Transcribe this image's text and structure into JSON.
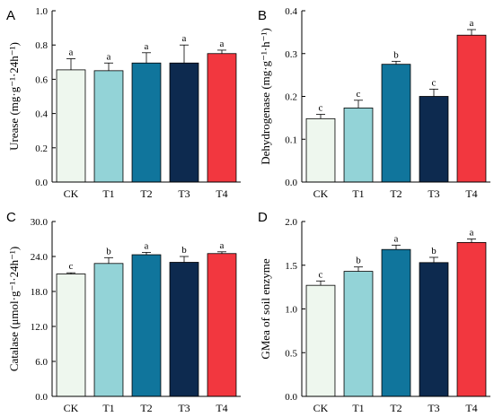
{
  "chart_data": [
    {
      "panel": "A",
      "type": "bar",
      "ylabel": "Urease (mg·g⁻¹·24h⁻¹)",
      "ylim": [
        0,
        1.0
      ],
      "yticks": [
        "0.0",
        "0.2",
        "0.4",
        "0.6",
        "0.8",
        "1.0"
      ],
      "categories": [
        "CK",
        "T1",
        "T2",
        "T3",
        "T4"
      ],
      "values": [
        0.655,
        0.65,
        0.695,
        0.695,
        0.75
      ],
      "errors": [
        0.065,
        0.045,
        0.06,
        0.105,
        0.02
      ],
      "letters": [
        "a",
        "a",
        "a",
        "a",
        "a"
      ]
    },
    {
      "panel": "B",
      "type": "bar",
      "ylabel": "Dehydrogenase (mg·g⁻¹·h⁻¹)",
      "ylim": [
        0,
        0.4
      ],
      "yticks": [
        "0.0",
        "0.1",
        "0.2",
        "0.3",
        "0.4"
      ],
      "categories": [
        "CK",
        "T1",
        "T2",
        "T3",
        "T4"
      ],
      "values": [
        0.148,
        0.173,
        0.275,
        0.2,
        0.343
      ],
      "errors": [
        0.01,
        0.018,
        0.007,
        0.017,
        0.013
      ],
      "letters": [
        "c",
        "c",
        "b",
        "c",
        "a"
      ]
    },
    {
      "panel": "C",
      "type": "bar",
      "ylabel": "Catalase (μmol·g⁻¹·24h⁻¹)",
      "ylim": [
        0,
        30.0
      ],
      "yticks": [
        "0.0",
        "6.0",
        "12.0",
        "18.0",
        "24.0",
        "30.0"
      ],
      "categories": [
        "CK",
        "T1",
        "T2",
        "T3",
        "T4"
      ],
      "values": [
        21.0,
        22.8,
        24.3,
        23.0,
        24.5
      ],
      "errors": [
        0.2,
        1.0,
        0.4,
        1.0,
        0.3
      ],
      "letters": [
        "c",
        "b",
        "a",
        "b",
        "a"
      ]
    },
    {
      "panel": "D",
      "type": "bar",
      "ylabel": "GMea of soil enzyme",
      "ylim": [
        0,
        2.0
      ],
      "yticks": [
        "0.0",
        "0.5",
        "1.0",
        "1.5",
        "2.0"
      ],
      "categories": [
        "CK",
        "T1",
        "T2",
        "T3",
        "T4"
      ],
      "values": [
        1.27,
        1.43,
        1.68,
        1.53,
        1.76
      ],
      "errors": [
        0.05,
        0.05,
        0.05,
        0.06,
        0.04
      ],
      "letters": [
        "c",
        "b",
        "a",
        "b",
        "a"
      ]
    }
  ],
  "colors": {
    "bars": [
      "#eef7ee",
      "#93d3d7",
      "#10759c",
      "#0d2a4f",
      "#f2373f"
    ],
    "axis": "#000000"
  }
}
